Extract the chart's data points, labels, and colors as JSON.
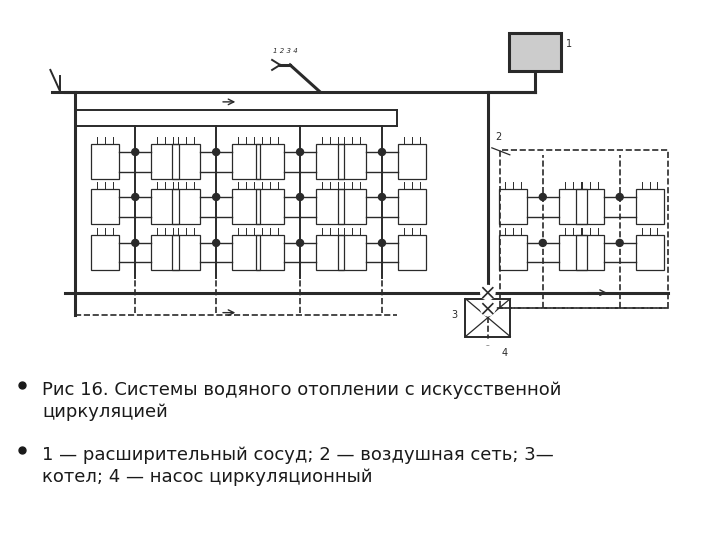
{
  "background_color": "#ffffff",
  "fig_width": 7.2,
  "fig_height": 5.4,
  "dpi": 100,
  "bullet_items": [
    "Рис 16. Системы водяного отоплении с искусственной\nциркуляцией",
    "1 — расширительный сосуд; 2 — воздушная сеть; 3—\nкотел; 4 — насос циркуляционный"
  ],
  "bullet_fontsize": 13,
  "bullet_color": "#1a1a1a",
  "diagram_color": "#2a2a2a",
  "diagram_light": "#888888"
}
